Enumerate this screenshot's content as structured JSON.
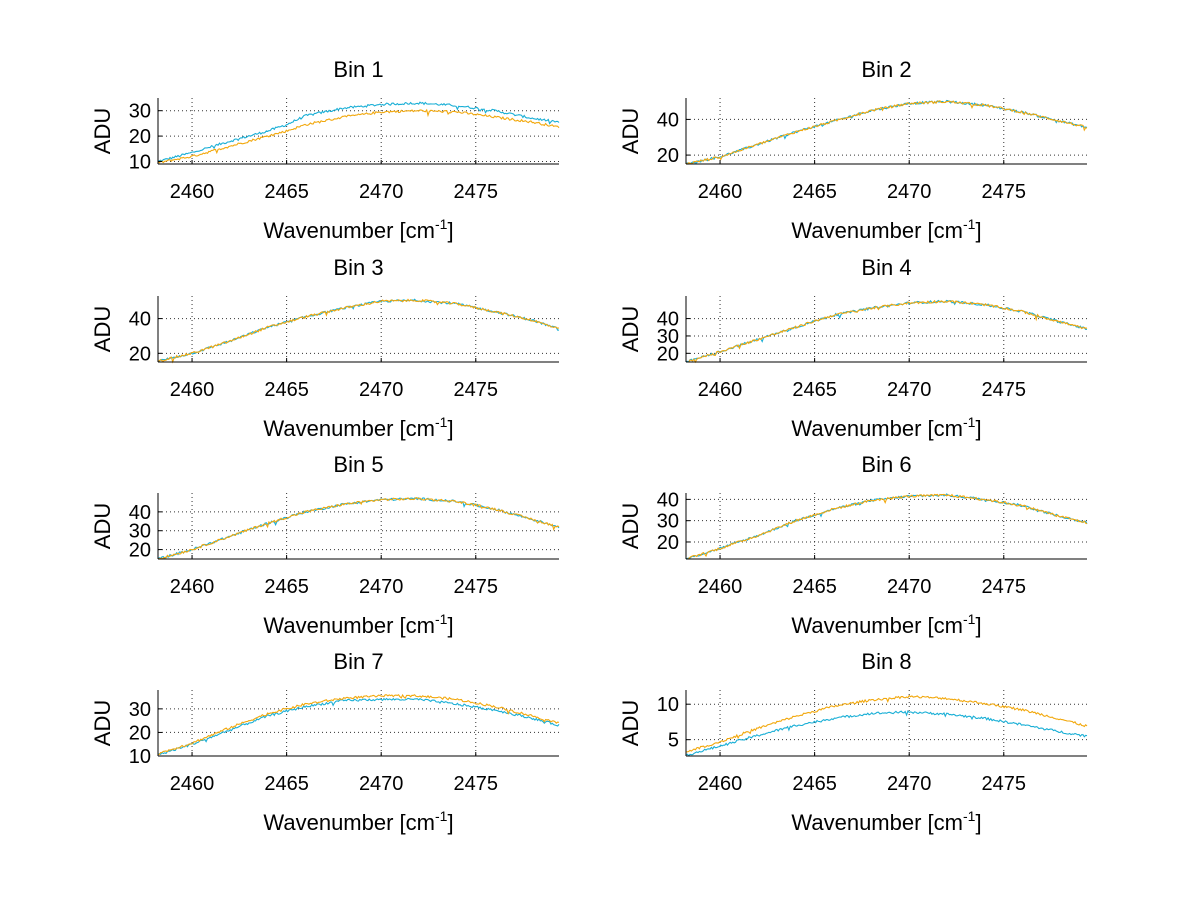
{
  "colors": {
    "series1": "#1AAFD6",
    "series2": "#F2A80D",
    "axis": "#000000",
    "grid": "#333333"
  },
  "chart_data": [
    {
      "type": "line",
      "title": "Bin 1",
      "xlabel": "Wavenumber [cm",
      "xlabel_sup": "-1",
      "xlabel_end": "]",
      "ylabel": "ADU",
      "xlim": [
        2458.2,
        2479.4
      ],
      "ylim": [
        9,
        35
      ],
      "xticks": [
        2460,
        2465,
        2470,
        2475
      ],
      "xtick_labels": [
        "2460",
        "2465",
        "2470",
        "2475"
      ],
      "yticks": [
        10,
        20,
        30
      ],
      "ytick_labels": [
        "10",
        "20",
        "30"
      ],
      "series": [
        {
          "name": "cyan",
          "x": [
            2458.2,
            2460,
            2462,
            2464,
            2465,
            2466,
            2468,
            2470,
            2472,
            2474,
            2476,
            2478,
            2479.4
          ],
          "y": [
            10,
            13.5,
            18,
            22,
            24.5,
            28,
            31,
            32.5,
            33,
            32,
            30,
            27,
            25.5
          ]
        },
        {
          "name": "orange",
          "x": [
            2458.2,
            2460,
            2462,
            2464,
            2465,
            2466,
            2468,
            2470,
            2472,
            2474,
            2476,
            2478,
            2479.4
          ],
          "y": [
            9.5,
            12,
            16,
            20,
            22,
            24.5,
            27.5,
            29.5,
            30,
            29.5,
            27.5,
            25.5,
            23.5
          ]
        }
      ]
    },
    {
      "type": "line",
      "title": "Bin 2",
      "xlabel": "Wavenumber [cm",
      "xlabel_sup": "-1",
      "xlabel_end": "]",
      "ylabel": "ADU",
      "xlim": [
        2458.2,
        2479.4
      ],
      "ylim": [
        15,
        52
      ],
      "xticks": [
        2460,
        2465,
        2470,
        2475
      ],
      "xtick_labels": [
        "2460",
        "2465",
        "2470",
        "2475"
      ],
      "yticks": [
        20,
        40
      ],
      "ytick_labels": [
        "20",
        "40"
      ],
      "series": [
        {
          "name": "cyan",
          "x": [
            2458.2,
            2460,
            2462,
            2464,
            2466,
            2468,
            2470,
            2472,
            2474,
            2476,
            2478,
            2479.4
          ],
          "y": [
            15,
            19,
            26,
            33,
            39,
            45,
            49,
            50,
            48,
            44,
            39,
            35.5
          ]
        },
        {
          "name": "orange",
          "x": [
            2458.2,
            2460,
            2462,
            2464,
            2466,
            2468,
            2470,
            2472,
            2474,
            2476,
            2478,
            2479.4
          ],
          "y": [
            15,
            19,
            26,
            33,
            39,
            45,
            49,
            50,
            48,
            44,
            39,
            35.5
          ]
        }
      ]
    },
    {
      "type": "line",
      "title": "Bin 3",
      "xlabel": "Wavenumber [cm",
      "xlabel_sup": "-1",
      "xlabel_end": "]",
      "ylabel": "ADU",
      "xlim": [
        2458.2,
        2479.4
      ],
      "ylim": [
        15,
        53
      ],
      "xticks": [
        2460,
        2465,
        2470,
        2475
      ],
      "xtick_labels": [
        "2460",
        "2465",
        "2470",
        "2475"
      ],
      "yticks": [
        20,
        40
      ],
      "ytick_labels": [
        "20",
        "40"
      ],
      "series": [
        {
          "name": "cyan",
          "x": [
            2458.2,
            2460,
            2462,
            2464,
            2466,
            2468,
            2470,
            2472,
            2474,
            2476,
            2478,
            2479.4
          ],
          "y": [
            15.5,
            20,
            27,
            35,
            41,
            46,
            50,
            50.5,
            48.5,
            44,
            39,
            34
          ]
        },
        {
          "name": "orange",
          "x": [
            2458.2,
            2460,
            2462,
            2464,
            2466,
            2468,
            2470,
            2472,
            2474,
            2476,
            2478,
            2479.4
          ],
          "y": [
            15.5,
            20,
            27,
            35,
            41,
            46,
            50,
            50.5,
            48.5,
            44,
            39,
            34
          ]
        }
      ]
    },
    {
      "type": "line",
      "title": "Bin 4",
      "xlabel": "Wavenumber [cm",
      "xlabel_sup": "-1",
      "xlabel_end": "]",
      "ylabel": "ADU",
      "xlim": [
        2458.2,
        2479.4
      ],
      "ylim": [
        15,
        53
      ],
      "xticks": [
        2460,
        2465,
        2470,
        2475
      ],
      "xtick_labels": [
        "2460",
        "2465",
        "2470",
        "2475"
      ],
      "yticks": [
        20,
        30,
        40
      ],
      "ytick_labels": [
        "20",
        "30",
        "40"
      ],
      "series": [
        {
          "name": "cyan",
          "x": [
            2458.2,
            2460,
            2462,
            2464,
            2466,
            2468,
            2470,
            2472,
            2474,
            2476,
            2478,
            2479.4
          ],
          "y": [
            15,
            21,
            28,
            35,
            42,
            46,
            49,
            50,
            48,
            44,
            38,
            34
          ]
        },
        {
          "name": "orange",
          "x": [
            2458.2,
            2460,
            2462,
            2464,
            2466,
            2468,
            2470,
            2472,
            2474,
            2476,
            2478,
            2479.4
          ],
          "y": [
            15,
            21,
            28,
            35,
            42,
            46,
            49,
            50,
            48,
            44,
            38,
            34
          ]
        }
      ]
    },
    {
      "type": "line",
      "title": "Bin 5",
      "xlabel": "Wavenumber [cm",
      "xlabel_sup": "-1",
      "xlabel_end": "]",
      "ylabel": "ADU",
      "xlim": [
        2458.2,
        2479.4
      ],
      "ylim": [
        15,
        50
      ],
      "xticks": [
        2460,
        2465,
        2470,
        2475
      ],
      "xtick_labels": [
        "2460",
        "2465",
        "2470",
        "2475"
      ],
      "yticks": [
        20,
        30,
        40
      ],
      "ytick_labels": [
        "20",
        "30",
        "40"
      ],
      "series": [
        {
          "name": "cyan",
          "x": [
            2458.2,
            2460,
            2462,
            2464,
            2466,
            2468,
            2470,
            2472,
            2474,
            2476,
            2478,
            2479.4
          ],
          "y": [
            15,
            20,
            27,
            34,
            40,
            44,
            46.5,
            47,
            45.5,
            41.5,
            36,
            32
          ]
        },
        {
          "name": "orange",
          "x": [
            2458.2,
            2460,
            2462,
            2464,
            2466,
            2468,
            2470,
            2472,
            2474,
            2476,
            2478,
            2479.4
          ],
          "y": [
            15,
            20,
            27,
            34,
            40,
            44,
            46.5,
            47,
            45.5,
            41.5,
            36,
            32
          ]
        }
      ]
    },
    {
      "type": "line",
      "title": "Bin 6",
      "xlabel": "Wavenumber [cm",
      "xlabel_sup": "-1",
      "xlabel_end": "]",
      "ylabel": "ADU",
      "xlim": [
        2458.2,
        2479.4
      ],
      "ylim": [
        12,
        43
      ],
      "xticks": [
        2460,
        2465,
        2470,
        2475
      ],
      "xtick_labels": [
        "2460",
        "2465",
        "2470",
        "2475"
      ],
      "yticks": [
        20,
        30,
        40
      ],
      "ytick_labels": [
        "20",
        "30",
        "40"
      ],
      "series": [
        {
          "name": "cyan",
          "x": [
            2458.2,
            2460,
            2462,
            2464,
            2466,
            2468,
            2470,
            2472,
            2474,
            2476,
            2478,
            2479.4
          ],
          "y": [
            12,
            17,
            23,
            30,
            35.5,
            39.5,
            41.5,
            42,
            40,
            37,
            32,
            29
          ]
        },
        {
          "name": "orange",
          "x": [
            2458.2,
            2460,
            2462,
            2464,
            2466,
            2468,
            2470,
            2472,
            2474,
            2476,
            2478,
            2479.4
          ],
          "y": [
            12,
            17,
            23,
            30,
            35.5,
            39.5,
            41.5,
            42,
            40,
            37,
            32,
            29
          ]
        }
      ]
    },
    {
      "type": "line",
      "title": "Bin 7",
      "xlabel": "Wavenumber [cm",
      "xlabel_sup": "-1",
      "xlabel_end": "]",
      "ylabel": "ADU",
      "xlim": [
        2458.2,
        2479.4
      ],
      "ylim": [
        10,
        38
      ],
      "xticks": [
        2460,
        2465,
        2470,
        2475
      ],
      "xtick_labels": [
        "2460",
        "2465",
        "2470",
        "2475"
      ],
      "yticks": [
        10,
        20,
        30
      ],
      "ytick_labels": [
        "10",
        "20",
        "30"
      ],
      "series": [
        {
          "name": "cyan",
          "x": [
            2458.2,
            2460,
            2462,
            2464,
            2466,
            2468,
            2470,
            2472,
            2474,
            2476,
            2478,
            2479.4
          ],
          "y": [
            10.5,
            15,
            21,
            27,
            31,
            33.5,
            34,
            34,
            32,
            29.5,
            26,
            23
          ]
        },
        {
          "name": "orange",
          "x": [
            2458.2,
            2460,
            2462,
            2464,
            2466,
            2468,
            2470,
            2472,
            2474,
            2476,
            2478,
            2479.4
          ],
          "y": [
            11,
            15.5,
            22,
            28,
            32,
            34.5,
            35.5,
            35.5,
            34,
            31,
            27,
            24
          ]
        }
      ]
    },
    {
      "type": "line",
      "title": "Bin 8",
      "xlabel": "Wavenumber [cm",
      "xlabel_sup": "-1",
      "xlabel_end": "]",
      "ylabel": "ADU",
      "xlim": [
        2458.2,
        2479.4
      ],
      "ylim": [
        2.7,
        12
      ],
      "xticks": [
        2460,
        2465,
        2470,
        2475
      ],
      "xtick_labels": [
        "2460",
        "2465",
        "2470",
        "2475"
      ],
      "yticks": [
        5,
        10
      ],
      "ytick_labels": [
        "5",
        "10"
      ],
      "series": [
        {
          "name": "cyan",
          "x": [
            2458.2,
            2460,
            2462,
            2464,
            2466,
            2468,
            2470,
            2472,
            2474,
            2476,
            2478,
            2479.4
          ],
          "y": [
            2.8,
            4.1,
            5.6,
            7.0,
            8.0,
            8.7,
            8.9,
            8.6,
            8.0,
            7.1,
            6.1,
            5.5
          ]
        },
        {
          "name": "orange",
          "x": [
            2458.2,
            2460,
            2462,
            2464,
            2466,
            2468,
            2470,
            2472,
            2474,
            2476,
            2478,
            2479.4
          ],
          "y": [
            3.3,
            4.7,
            6.6,
            8.3,
            9.7,
            10.6,
            11.1,
            10.8,
            10.1,
            9.2,
            7.9,
            6.9
          ]
        }
      ]
    }
  ]
}
